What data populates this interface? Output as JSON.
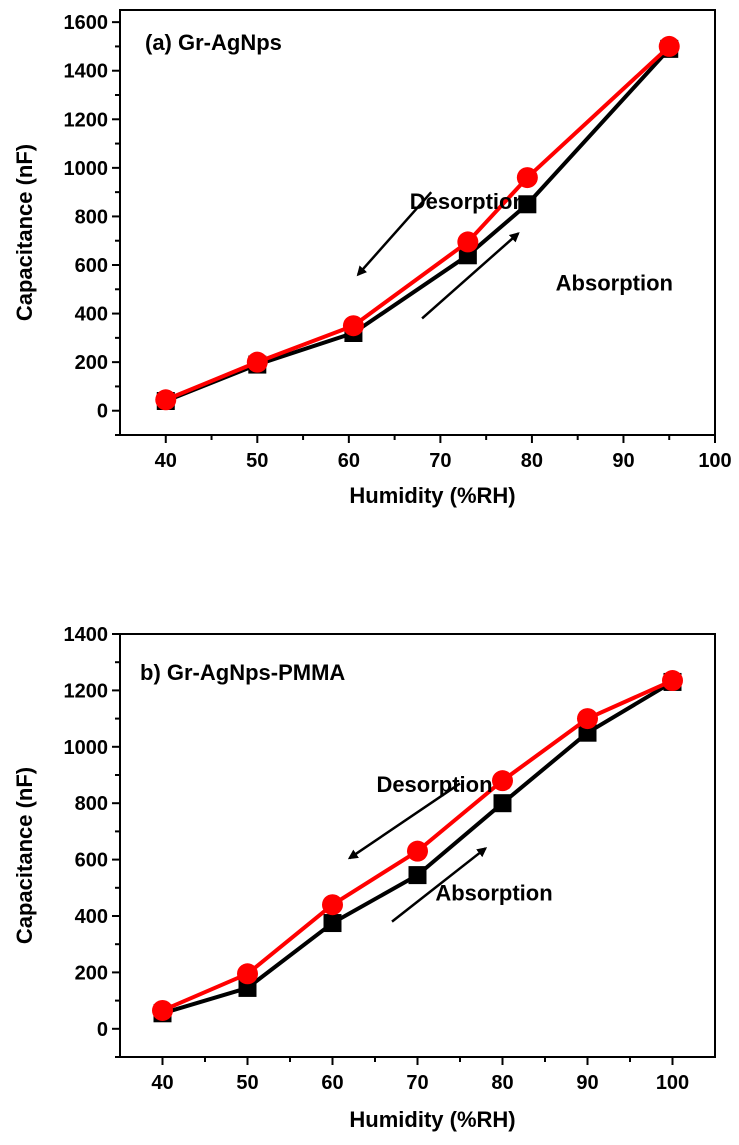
{
  "chart_data": [
    {
      "type": "line",
      "title": "(a) Gr-AgNps",
      "xlabel": "Humidity (%RH)",
      "ylabel": "Capacitance (nF)",
      "xlim": [
        35,
        100
      ],
      "ylim": [
        -100,
        1650
      ],
      "xticks": [
        "40",
        "50",
        "60",
        "70",
        "80",
        "90",
        "100"
      ],
      "yticks": [
        "0",
        "200",
        "400",
        "600",
        "800",
        "1000",
        "1200",
        "1400",
        "1600"
      ],
      "grid": false,
      "series": [
        {
          "marker": "square",
          "color": "#000000",
          "x": [
            40,
            50,
            60.5,
            73,
            79.5,
            95
          ],
          "y": [
            40,
            190,
            320,
            640,
            850,
            1490
          ]
        },
        {
          "marker": "circle",
          "color": "#ff0000",
          "x": [
            40,
            50,
            60.5,
            73,
            79.5,
            95
          ],
          "y": [
            45,
            200,
            350,
            695,
            960,
            1500
          ]
        }
      ],
      "annotations": [
        {
          "text": "Desorption",
          "direction": "down-left",
          "x": 73,
          "y": 830,
          "arrow": [
            [
              69,
              900
            ],
            [
              61,
              560
            ]
          ]
        },
        {
          "text": "Absorption",
          "direction": "up-right",
          "x": 89,
          "y": 495,
          "arrow": [
            [
              68,
              380
            ],
            [
              78.5,
              730
            ]
          ]
        }
      ]
    },
    {
      "type": "line",
      "title": "b) Gr-AgNps-PMMA",
      "xlabel": "Humidity (%RH)",
      "ylabel": "Capacitance (nF)",
      "xlim": [
        35,
        105
      ],
      "ylim": [
        -100,
        1400
      ],
      "xticks": [
        "40",
        "50",
        "60",
        "70",
        "80",
        "90",
        "100"
      ],
      "yticks": [
        "0",
        "200",
        "400",
        "600",
        "800",
        "1000",
        "1200",
        "1400"
      ],
      "grid": false,
      "series": [
        {
          "marker": "square",
          "color": "#000000",
          "x": [
            40,
            50,
            60,
            70,
            80,
            90,
            100
          ],
          "y": [
            55,
            145,
            375,
            545,
            800,
            1050,
            1230
          ]
        },
        {
          "marker": "circle",
          "color": "#ff0000",
          "x": [
            40,
            50,
            60,
            70,
            80,
            90,
            100
          ],
          "y": [
            65,
            195,
            440,
            630,
            880,
            1100,
            1235
          ]
        }
      ],
      "annotations": [
        {
          "text": "Desorption",
          "direction": "down-left",
          "x": 72,
          "y": 840,
          "arrow": [
            [
              75,
              870
            ],
            [
              62,
              605
            ]
          ]
        },
        {
          "text": "Absorption",
          "direction": "up-right",
          "x": 79,
          "y": 455,
          "arrow": [
            [
              67,
              380
            ],
            [
              78,
              640
            ]
          ]
        }
      ]
    }
  ]
}
